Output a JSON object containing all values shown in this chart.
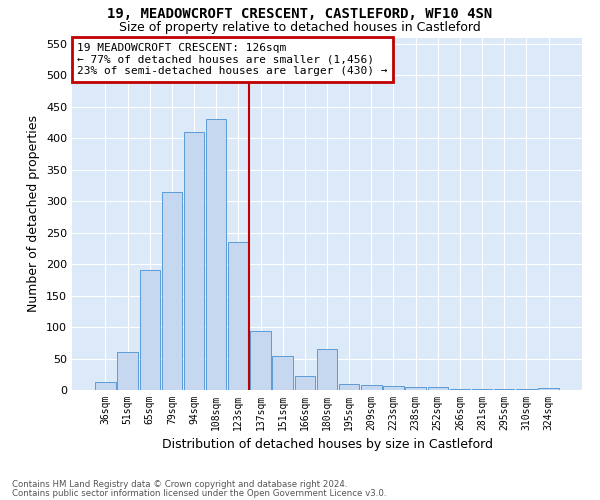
{
  "title1": "19, MEADOWCROFT CRESCENT, CASTLEFORD, WF10 4SN",
  "title2": "Size of property relative to detached houses in Castleford",
  "xlabel": "Distribution of detached houses by size in Castleford",
  "ylabel": "Number of detached properties",
  "bar_labels": [
    "36sqm",
    "51sqm",
    "65sqm",
    "79sqm",
    "94sqm",
    "108sqm",
    "123sqm",
    "137sqm",
    "151sqm",
    "166sqm",
    "180sqm",
    "195sqm",
    "209sqm",
    "223sqm",
    "238sqm",
    "252sqm",
    "266sqm",
    "281sqm",
    "295sqm",
    "310sqm",
    "324sqm"
  ],
  "bar_values": [
    13,
    60,
    190,
    315,
    410,
    430,
    235,
    93,
    54,
    22,
    65,
    10,
    8,
    6,
    5,
    5,
    2,
    2,
    2,
    2,
    3
  ],
  "bar_color": "#c5d8f0",
  "bar_edge_color": "#5b9bd5",
  "marker_index": 6,
  "marker_line_color": "#c00000",
  "annotation_title": "19 MEADOWCROFT CRESCENT: 126sqm",
  "annotation_line1": "← 77% of detached houses are smaller (1,456)",
  "annotation_line2": "23% of semi-detached houses are larger (430) →",
  "annotation_box_color": "#c00000",
  "ylim": [
    0,
    560
  ],
  "yticks": [
    0,
    50,
    100,
    150,
    200,
    250,
    300,
    350,
    400,
    450,
    500,
    550
  ],
  "footnote1": "Contains HM Land Registry data © Crown copyright and database right 2024.",
  "footnote2": "Contains public sector information licensed under the Open Government Licence v3.0.",
  "bg_color": "#dce9f8"
}
